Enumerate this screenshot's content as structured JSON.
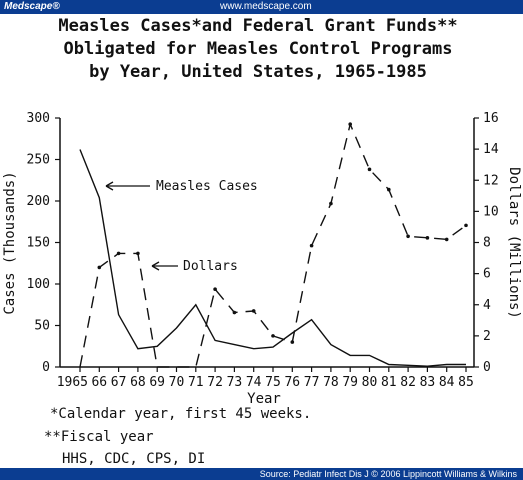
{
  "header": {
    "brand": "Medscape®",
    "url": "www.medscape.com"
  },
  "footer": {
    "source": "Source: Pediatr Infect Dis J © 2006 Lippincott Williams & Wilkins"
  },
  "colors": {
    "banner": "#0b3d91",
    "ink": "#111111"
  },
  "chart_data": {
    "type": "line",
    "title": [
      "Measles Cases*and Federal Grant Funds**",
      "Obligated for Measles Control Programs",
      "by Year, United States, 1965-1985"
    ],
    "xlabel": "Year",
    "ylabel_left": "Cases (Thousands)",
    "ylabel_right": "Dollars (Millions)",
    "categories": [
      "1965",
      "66",
      "67",
      "68",
      "69",
      "70",
      "71",
      "72",
      "73",
      "74",
      "75",
      "76",
      "77",
      "78",
      "79",
      "80",
      "81",
      "82",
      "83",
      "84",
      "85"
    ],
    "x": [
      1965,
      1966,
      1967,
      1968,
      1969,
      1970,
      1971,
      1972,
      1973,
      1974,
      1975,
      1976,
      1977,
      1978,
      1979,
      1980,
      1981,
      1982,
      1983,
      1984,
      1985
    ],
    "ylim_left": [
      0,
      300
    ],
    "yticks_left": [
      0,
      50,
      100,
      150,
      200,
      250,
      300
    ],
    "ylim_right": [
      0,
      16
    ],
    "yticks_right": [
      0,
      2,
      4,
      6,
      8,
      10,
      12,
      14,
      16
    ],
    "grid": false,
    "series": [
      {
        "name": "Measles Cases",
        "axis": "left",
        "style": "solid",
        "x": [
          1965,
          1966,
          1967,
          1968,
          1969,
          1970,
          1971,
          1972,
          1973,
          1974,
          1975,
          1976,
          1977,
          1978,
          1979,
          1980,
          1981,
          1982,
          1983,
          1984,
          1985
        ],
        "values": [
          262,
          204,
          63,
          22,
          25,
          47,
          75,
          32,
          27,
          22,
          24,
          41,
          57,
          27,
          14,
          14,
          3,
          2,
          1,
          3,
          3
        ]
      },
      {
        "name": "Dollars",
        "axis": "right",
        "style": "dashed",
        "x": [
          1965,
          1966,
          1967,
          1968,
          1969,
          1970,
          1971,
          1972,
          1973,
          1974,
          1975,
          1976,
          1977,
          1978,
          1979,
          1980,
          1981,
          1982,
          1983,
          1984,
          1985
        ],
        "values": [
          0,
          6.4,
          7.3,
          7.3,
          0,
          0,
          0,
          5.0,
          3.5,
          3.6,
          2.0,
          1.6,
          7.8,
          10.5,
          15.6,
          12.7,
          11.4,
          8.4,
          8.3,
          8.2,
          9.1
        ]
      }
    ],
    "annotations": [
      "Measles Cases",
      "Dollars"
    ],
    "footnotes": [
      "*Calendar year, first 45 weeks.",
      "**Fiscal year",
      "HHS, CDC, CPS, DI"
    ]
  }
}
